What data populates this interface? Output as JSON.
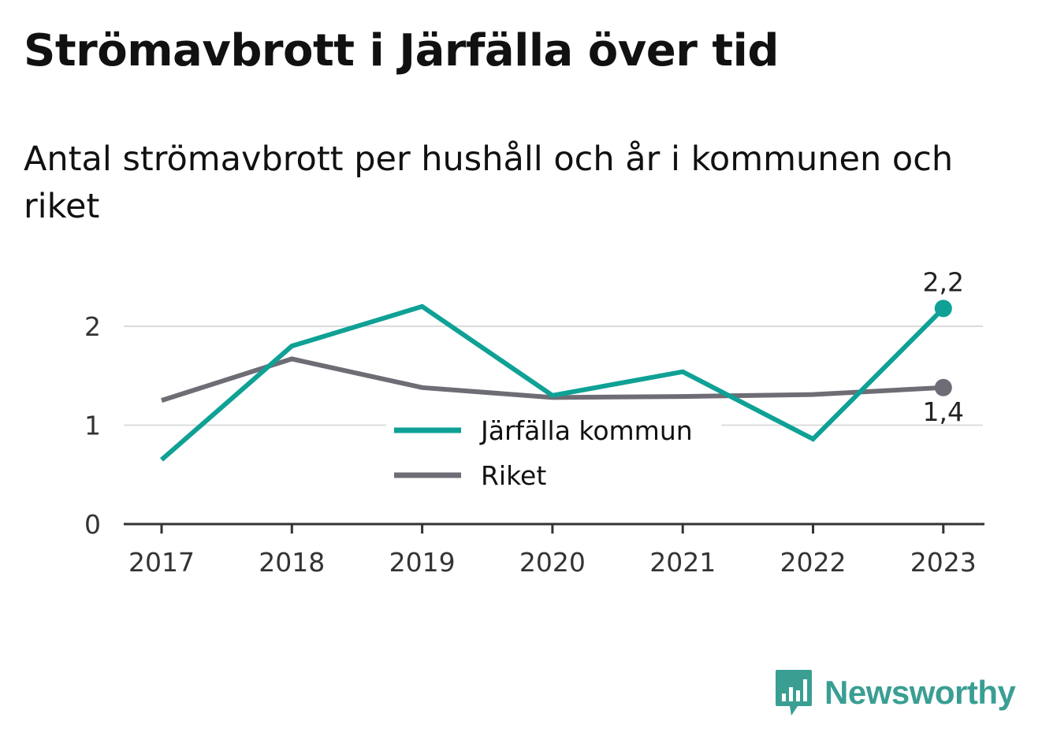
{
  "title": "Strömavbrott i Järfälla över tid",
  "subtitle": "Antal strömavbrott per hushåll och år i kommunen och riket",
  "brand": {
    "name": "Newsworthy",
    "logo_icon": "bar-chart-speech-bubble-icon",
    "color": "#3a9e93"
  },
  "chart_data": {
    "type": "line",
    "x": [
      "2017",
      "2018",
      "2019",
      "2020",
      "2021",
      "2022",
      "2023"
    ],
    "series": [
      {
        "name": "Järfälla kommun",
        "color": "#0fa195",
        "values": [
          0.65,
          1.8,
          2.2,
          1.3,
          1.54,
          0.86,
          2.18
        ],
        "end_label": "2,2"
      },
      {
        "name": "Riket",
        "color": "#6e6d75",
        "values": [
          1.25,
          1.67,
          1.38,
          1.28,
          1.29,
          1.31,
          1.38
        ],
        "end_label": "1,4"
      }
    ],
    "yticks": [
      0,
      1,
      2
    ],
    "ylim": [
      0,
      2.2
    ],
    "grid": true,
    "legend": "center"
  }
}
